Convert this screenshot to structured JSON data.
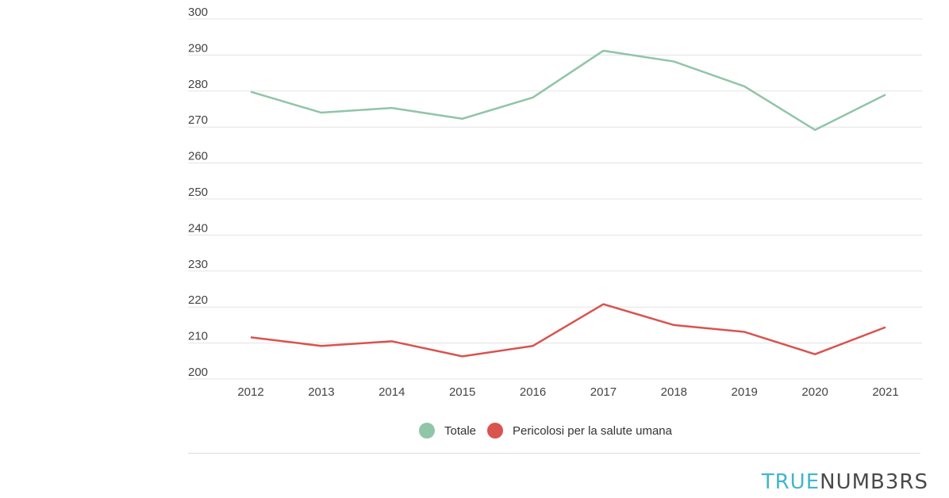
{
  "colors": {
    "totale": "#90c5a8",
    "pericolosi": "#d9534f",
    "grid": "#e3e3e3"
  },
  "legend": {
    "series_a": "Totale",
    "series_b": "Pericolosi per la salute umana"
  },
  "brand": {
    "part_a": "TRUE",
    "part_b": "NUMB3RS"
  },
  "chart_data": {
    "type": "line",
    "x": [
      "2012",
      "2013",
      "2014",
      "2015",
      "2016",
      "2017",
      "2018",
      "2019",
      "2020",
      "2021"
    ],
    "ylim": [
      200,
      300
    ],
    "yticks": [
      "300",
      "290",
      "280",
      "270",
      "260",
      "250",
      "240",
      "230",
      "220",
      "210",
      "200"
    ],
    "grid": true,
    "legend_position": "bottom",
    "series": [
      {
        "name": "Totale",
        "color": "#90c5a8",
        "values": [
          279.8,
          274.0,
          275.3,
          272.3,
          278.2,
          291.2,
          288.2,
          281.3,
          269.2,
          279.0
        ]
      },
      {
        "name": "Pericolosi per la salute umana",
        "color": "#d9534f",
        "values": [
          211.6,
          209.2,
          210.5,
          206.3,
          209.2,
          220.8,
          215.0,
          213.1,
          206.9,
          214.4
        ]
      }
    ]
  }
}
